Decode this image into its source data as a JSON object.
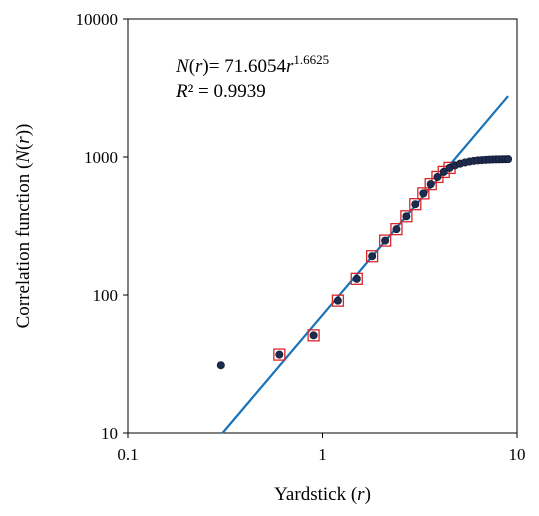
{
  "chart_data": {
    "type": "scatter",
    "title": "",
    "xlabel": "Yardstick (r)",
    "ylabel": "Correlation function (N(r))",
    "x_scale": "log",
    "y_scale": "log",
    "xlim": [
      0.1,
      10
    ],
    "ylim": [
      10,
      10000
    ],
    "grid": false,
    "x_ticks": [
      "0.1",
      "1",
      "10"
    ],
    "y_ticks": [
      "10",
      "100",
      "1000",
      "10000"
    ],
    "annotation": {
      "line1": {
        "N": "N",
        "r1": "r",
        "rest": ")= 71.6054",
        "r2": "r",
        "exp": "1.6625"
      },
      "line2": {
        "R": "R",
        "rest": "² = 0.9939"
      }
    },
    "series": [
      {
        "role": "all_points",
        "marker": "filled-circle",
        "color": "#1f2b4d",
        "x": [
          0.3,
          0.6,
          0.9,
          1.2,
          1.5,
          1.8,
          2.1,
          2.4,
          2.7,
          3.0,
          3.3,
          3.6,
          3.9,
          4.2,
          4.5,
          4.8,
          5.1,
          5.4,
          5.7,
          6.0,
          6.3,
          6.6,
          6.9,
          7.2,
          7.5,
          7.8,
          8.1,
          8.4,
          8.7,
          9.0
        ],
        "y": [
          31,
          37,
          51,
          91,
          131,
          191,
          248,
          300,
          372,
          455,
          545,
          636,
          717,
          780,
          834,
          870,
          895,
          913,
          927,
          938,
          945,
          950,
          954,
          957,
          960,
          961,
          962,
          963,
          964,
          965
        ]
      },
      {
        "role": "fitted_points",
        "marker": "open-square",
        "color": "#d9262b",
        "x": [
          0.6,
          0.9,
          1.2,
          1.5,
          1.8,
          2.1,
          2.4,
          2.7,
          3.0,
          3.3,
          3.6,
          3.9,
          4.2,
          4.5
        ],
        "y": [
          37,
          51,
          91,
          131,
          191,
          248,
          300,
          372,
          455,
          545,
          636,
          717,
          780,
          834
        ]
      }
    ],
    "fit_line": {
      "color": "#1a73b8",
      "coefficient": 71.6054,
      "exponent": 1.6625,
      "x_range": [
        0.3,
        9.0
      ]
    }
  }
}
